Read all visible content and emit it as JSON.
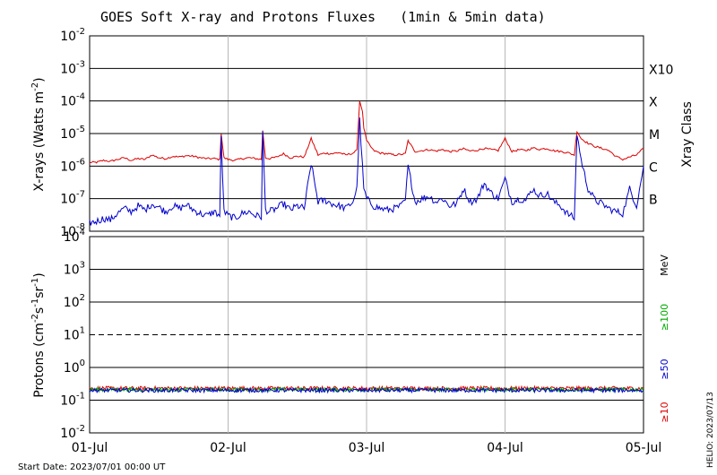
{
  "chart_data": [
    {
      "type": "line",
      "title": "GOES Soft X-ray and Protons Fluxes   (1min & 5min data)",
      "ylabel": "X-rays (Watts m^-2)",
      "ylabel_parts": {
        "base": "X-rays (Watts m",
        "exp": "-2",
        "close": ")"
      },
      "yscale": "log",
      "ylim": [
        1e-08,
        0.01
      ],
      "y_ticks": [
        {
          "base": "10",
          "exp": "-8",
          "value": 1e-08
        },
        {
          "base": "10",
          "exp": "-7",
          "value": 1e-07
        },
        {
          "base": "10",
          "exp": "-6",
          "value": 1e-06
        },
        {
          "base": "10",
          "exp": "-5",
          "value": 1e-05
        },
        {
          "base": "10",
          "exp": "-4",
          "value": 0.0001
        },
        {
          "base": "10",
          "exp": "-3",
          "value": 0.001
        },
        {
          "base": "10",
          "exp": "-2",
          "value": 0.01
        }
      ],
      "right_axis_label": "Xray Class",
      "xray_classes": [
        {
          "label": "B",
          "value": 1e-07
        },
        {
          "label": "C",
          "value": 1e-06
        },
        {
          "label": "M",
          "value": 1e-05
        },
        {
          "label": "X",
          "value": 0.0001
        },
        {
          "label": "X10",
          "value": 0.001
        }
      ],
      "x_range_days": [
        0,
        4
      ],
      "series": [
        {
          "color": "#dd0000",
          "x_days": [
            0,
            0.05,
            0.1,
            0.15,
            0.2,
            0.25,
            0.3,
            0.35,
            0.4,
            0.45,
            0.5,
            0.55,
            0.6,
            0.65,
            0.7,
            0.75,
            0.8,
            0.85,
            0.9,
            0.94,
            0.95,
            0.97,
            1.0,
            1.05,
            1.1,
            1.15,
            1.2,
            1.24,
            1.25,
            1.27,
            1.3,
            1.35,
            1.4,
            1.45,
            1.5,
            1.55,
            1.6,
            1.65,
            1.7,
            1.75,
            1.8,
            1.85,
            1.9,
            1.93,
            1.95,
            1.97,
            1.98,
            2.0,
            2.05,
            2.1,
            2.15,
            2.2,
            2.25,
            2.28,
            2.3,
            2.35,
            2.4,
            2.45,
            2.5,
            2.55,
            2.6,
            2.65,
            2.7,
            2.75,
            2.8,
            2.85,
            2.9,
            2.95,
            3.0,
            3.05,
            3.1,
            3.15,
            3.2,
            3.25,
            3.3,
            3.35,
            3.4,
            3.45,
            3.5,
            3.52,
            3.55,
            3.6,
            3.65,
            3.7,
            3.75,
            3.8,
            3.85,
            3.9,
            3.95,
            4.0
          ],
          "y_wm2": [
            1.3e-06,
            1.3e-06,
            1.5e-06,
            1.4e-06,
            1.6e-06,
            1.8e-06,
            1.5e-06,
            1.7e-06,
            1.6e-06,
            2.2e-06,
            1.8e-06,
            1.7e-06,
            2e-06,
            1.9e-06,
            2.1e-06,
            2e-06,
            1.8e-06,
            1.7e-06,
            1.7e-06,
            1.6e-06,
            1e-05,
            1.8e-06,
            1.6e-06,
            1.5e-06,
            1.7e-06,
            1.8e-06,
            1.7e-06,
            1.6e-06,
            1.2e-05,
            1.8e-06,
            1.7e-06,
            1.9e-06,
            2.4e-06,
            1.8e-06,
            2e-06,
            1.9e-06,
            7e-06,
            2.2e-06,
            2.5e-06,
            2.4e-06,
            2.6e-06,
            2.2e-06,
            2.5e-06,
            3e-06,
            0.0001,
            5e-05,
            1.5e-05,
            6e-06,
            3e-06,
            2.5e-06,
            2.4e-06,
            2.2e-06,
            2.3e-06,
            2.4e-06,
            6e-06,
            2.8e-06,
            3e-06,
            3.2e-06,
            2.9e-06,
            3.2e-06,
            2.8e-06,
            2.9e-06,
            3.4e-06,
            2.9e-06,
            3.1e-06,
            3.5e-06,
            3.2e-06,
            3e-06,
            7e-06,
            2.8e-06,
            3.2e-06,
            3e-06,
            3.6e-06,
            3.3e-06,
            3.5e-06,
            3e-06,
            2.8e-06,
            2.6e-06,
            2.2e-06,
            1.2e-05,
            7e-06,
            5e-06,
            4e-06,
            3.5e-06,
            3e-06,
            2e-06,
            1.6e-06,
            1.9e-06,
            2.2e-06,
            3.5e-06
          ]
        },
        {
          "color": "#0000cc",
          "x_days": [
            0,
            0.05,
            0.1,
            0.15,
            0.2,
            0.25,
            0.3,
            0.35,
            0.4,
            0.45,
            0.5,
            0.55,
            0.6,
            0.65,
            0.7,
            0.75,
            0.8,
            0.85,
            0.9,
            0.94,
            0.95,
            0.97,
            1.0,
            1.05,
            1.1,
            1.15,
            1.2,
            1.24,
            1.25,
            1.27,
            1.3,
            1.35,
            1.4,
            1.45,
            1.5,
            1.55,
            1.6,
            1.65,
            1.7,
            1.75,
            1.8,
            1.85,
            1.9,
            1.93,
            1.95,
            1.97,
            1.98,
            2.0,
            2.05,
            2.1,
            2.15,
            2.2,
            2.25,
            2.28,
            2.3,
            2.35,
            2.4,
            2.45,
            2.5,
            2.55,
            2.6,
            2.65,
            2.7,
            2.75,
            2.8,
            2.85,
            2.9,
            2.95,
            3.0,
            3.05,
            3.1,
            3.15,
            3.2,
            3.25,
            3.3,
            3.35,
            3.4,
            3.45,
            3.5,
            3.52,
            3.55,
            3.6,
            3.65,
            3.7,
            3.75,
            3.8,
            3.85,
            3.9,
            3.95,
            4.0
          ],
          "y_wm2": [
            1.8e-08,
            2e-08,
            2.5e-08,
            2.2e-08,
            3.5e-08,
            5e-08,
            4e-08,
            6e-08,
            4.5e-08,
            7e-08,
            5.5e-08,
            4e-08,
            6e-08,
            5e-08,
            6.5e-08,
            4.5e-08,
            3.5e-08,
            3e-08,
            4e-08,
            3e-08,
            8e-06,
            4e-08,
            3e-08,
            2.5e-08,
            3.5e-08,
            4e-08,
            3e-08,
            2.8e-08,
            1e-05,
            4.5e-08,
            4e-08,
            5e-08,
            7e-08,
            4.5e-08,
            6e-08,
            5e-08,
            1.2e-06,
            8e-08,
            9e-08,
            7e-08,
            6e-08,
            5e-08,
            8e-08,
            2e-07,
            2.5e-05,
            1e-06,
            2e-07,
            1e-07,
            6e-08,
            5e-08,
            4.5e-08,
            5e-08,
            6e-08,
            9e-08,
            1e-06,
            8e-08,
            1e-07,
            1.2e-07,
            8e-08,
            1e-07,
            6e-08,
            7e-08,
            2e-07,
            8e-08,
            1e-07,
            3e-07,
            1.5e-07,
            1e-07,
            4e-07,
            8e-08,
            1e-07,
            9e-08,
            2e-07,
            1.2e-07,
            1.5e-07,
            8e-08,
            6e-08,
            3.5e-08,
            2.5e-08,
            1e-05,
            1.5e-06,
            2e-07,
            9e-08,
            7e-08,
            5e-08,
            4e-08,
            3.5e-08,
            2e-07,
            6e-08,
            1e-06
          ]
        }
      ]
    },
    {
      "type": "line",
      "ylabel_parts": {
        "base": "Protons (cm",
        "e1": "-2",
        "mid1": "s",
        "e2": "-1",
        "mid2": "sr",
        "e3": "-1",
        "close": ")"
      },
      "yscale": "log",
      "ylim": [
        0.01,
        10000
      ],
      "y_ticks": [
        {
          "base": "10",
          "exp": "-2",
          "value": 0.01
        },
        {
          "base": "10",
          "exp": "-1",
          "value": 0.1
        },
        {
          "base": "10",
          "exp": "0",
          "value": 1
        },
        {
          "base": "10",
          "exp": "1",
          "value": 10
        },
        {
          "base": "10",
          "exp": "2",
          "value": 100
        },
        {
          "base": "10",
          "exp": "3",
          "value": 1000
        },
        {
          "base": "10",
          "exp": "4",
          "value": 10000
        }
      ],
      "threshold": {
        "value": 10,
        "style": "dashed"
      },
      "right_labels": [
        {
          "text": "MeV",
          "color": "#000000"
        },
        {
          "text": "≥100",
          "color": "#00aa00"
        },
        {
          "text": "≥50",
          "color": "#0000cc"
        },
        {
          "text": "≥10",
          "color": "#dd0000"
        }
      ],
      "x_range_days": [
        0,
        4
      ],
      "series": [
        {
          "name": "≥10",
          "color": "#dd0000",
          "level": 0.23
        },
        {
          "name": "≥100",
          "color": "#00aa00",
          "level": 0.21
        },
        {
          "name": "≥50",
          "color": "#0000cc",
          "level": 0.2
        }
      ]
    }
  ],
  "x_ticks": [
    "01-Jul",
    "02-Jul",
    "03-Jul",
    "04-Jul",
    "05-Jul"
  ],
  "start_date": "Start Date: 2023/07/01 00:00 UT",
  "credit": "HELIO: 2023/07/13"
}
